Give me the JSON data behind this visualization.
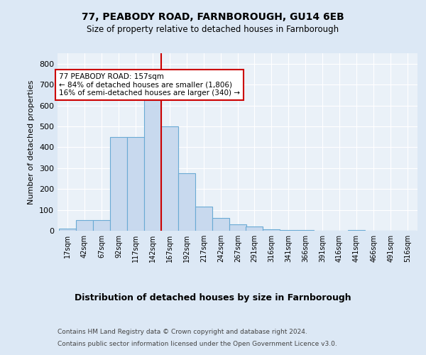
{
  "title1": "77, PEABODY ROAD, FARNBOROUGH, GU14 6EB",
  "title2": "Size of property relative to detached houses in Farnborough",
  "xlabel": "Distribution of detached houses by size in Farnborough",
  "ylabel": "Number of detached properties",
  "footer1": "Contains HM Land Registry data © Crown copyright and database right 2024.",
  "footer2": "Contains public sector information licensed under the Open Government Licence v3.0.",
  "bin_labels": [
    "17sqm",
    "42sqm",
    "67sqm",
    "92sqm",
    "117sqm",
    "142sqm",
    "167sqm",
    "192sqm",
    "217sqm",
    "242sqm",
    "267sqm",
    "291sqm",
    "316sqm",
    "341sqm",
    "366sqm",
    "391sqm",
    "416sqm",
    "441sqm",
    "466sqm",
    "491sqm",
    "516sqm"
  ],
  "bar_heights": [
    10,
    50,
    50,
    450,
    450,
    625,
    500,
    275,
    115,
    60,
    30,
    20,
    8,
    5,
    5,
    0,
    0,
    5,
    0,
    0,
    0
  ],
  "bar_color": "#c8d9ee",
  "bar_edge_color": "#6aaad4",
  "vline_color": "#cc0000",
  "annotation_text": "77 PEABODY ROAD: 157sqm\n← 84% of detached houses are smaller (1,806)\n16% of semi-detached houses are larger (340) →",
  "annotation_box_color": "#ffffff",
  "annotation_box_edge": "#cc0000",
  "ylim": [
    0,
    850
  ],
  "yticks": [
    0,
    100,
    200,
    300,
    400,
    500,
    600,
    700,
    800
  ],
  "bg_color": "#dce8f5",
  "axes_bg_color": "#eaf1f8",
  "grid_color": "#ffffff",
  "footer_color": "#444444"
}
